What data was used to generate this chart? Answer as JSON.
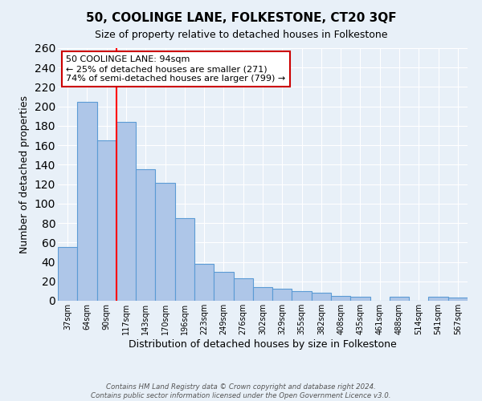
{
  "title": "50, COOLINGE LANE, FOLKESTONE, CT20 3QF",
  "subtitle": "Size of property relative to detached houses in Folkestone",
  "xlabel": "Distribution of detached houses by size in Folkestone",
  "ylabel": "Number of detached properties",
  "footnote1": "Contains HM Land Registry data © Crown copyright and database right 2024.",
  "footnote2": "Contains public sector information licensed under the Open Government Licence v3.0.",
  "bin_labels": [
    "37sqm",
    "64sqm",
    "90sqm",
    "117sqm",
    "143sqm",
    "170sqm",
    "196sqm",
    "223sqm",
    "249sqm",
    "276sqm",
    "302sqm",
    "329sqm",
    "355sqm",
    "382sqm",
    "408sqm",
    "435sqm",
    "461sqm",
    "488sqm",
    "514sqm",
    "541sqm",
    "567sqm"
  ],
  "bar_heights": [
    55,
    205,
    165,
    184,
    135,
    121,
    85,
    38,
    30,
    23,
    14,
    12,
    10,
    8,
    5,
    4,
    0,
    4,
    0,
    4,
    3
  ],
  "bar_color": "#aec6e8",
  "bar_edge_color": "#5b9bd5",
  "bg_color": "#e8f0f8",
  "grid_color": "#ffffff",
  "red_line_bin": 2,
  "annotation_title": "50 COOLINGE LANE: 94sqm",
  "annotation_line1": "← 25% of detached houses are smaller (271)",
  "annotation_line2": "74% of semi-detached houses are larger (799) →",
  "annotation_box_color": "#ffffff",
  "annotation_border_color": "#cc0000",
  "ylim": [
    0,
    260
  ],
  "yticks": [
    0,
    20,
    40,
    60,
    80,
    100,
    120,
    140,
    160,
    180,
    200,
    220,
    240,
    260
  ]
}
